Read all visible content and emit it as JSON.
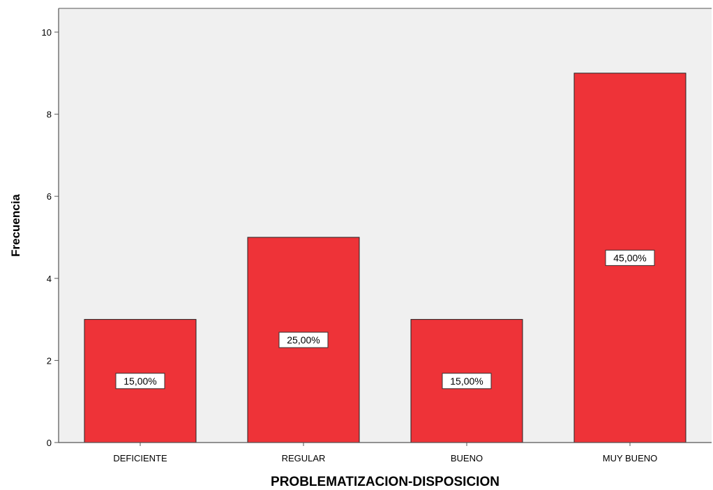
{
  "chart_data": {
    "type": "bar",
    "categories": [
      "DEFICIENTE",
      "REGULAR",
      "BUENO",
      "MUY BUENO"
    ],
    "values": [
      3,
      5,
      3,
      9
    ],
    "data_labels": [
      "15,00%",
      "25,00%",
      "15,00%",
      "45,00%"
    ],
    "xlabel": "PROBLEMATIZACION-DISPOSICION",
    "ylabel": "Frecuencia",
    "ylim": [
      0,
      10
    ],
    "yticks": [
      "0",
      "2",
      "4",
      "6",
      "8",
      "10"
    ],
    "grid": false,
    "colors": {
      "bar": "#EE3338",
      "bar_edge": "#222222",
      "plot_background": "#F0F0F0"
    }
  }
}
